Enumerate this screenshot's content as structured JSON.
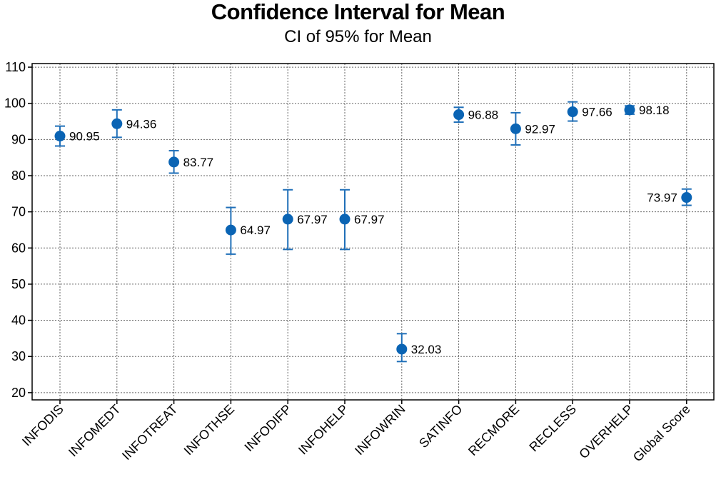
{
  "chart_data": {
    "type": "scatter",
    "title": "Confidence Interval for Mean",
    "subtitle": "CI of 95% for Mean",
    "xlabel": "",
    "ylabel": "",
    "ylim": [
      18,
      111
    ],
    "yticks": [
      20,
      30,
      40,
      50,
      60,
      70,
      80,
      90,
      100,
      110
    ],
    "grid": true,
    "categories": [
      "INFODIS",
      "INFOMEDT",
      "INFOTREAT",
      "INFOTHSE",
      "INFODIFP",
      "INFOHELP",
      "INFOWRIN",
      "SATINFO",
      "RECMORE",
      "RECLESS",
      "OVERHELP",
      "Global Score"
    ],
    "means": [
      90.95,
      94.36,
      83.77,
      64.97,
      67.97,
      67.97,
      32.03,
      96.88,
      92.97,
      97.66,
      98.18,
      73.97
    ],
    "labels": [
      "90.95",
      "94.36",
      "83.77",
      "64.97",
      "67.97",
      "67.97",
      "32.03",
      "96.88",
      "92.97",
      "97.66",
      "98.18",
      "73.97"
    ],
    "ci_lower": [
      88.2,
      90.6,
      80.7,
      58.3,
      59.6,
      59.6,
      28.6,
      94.8,
      88.5,
      95.1,
      97.0,
      71.8
    ],
    "ci_upper": [
      93.7,
      98.2,
      86.9,
      71.2,
      76.1,
      76.1,
      36.3,
      98.9,
      97.4,
      100.4,
      99.3,
      76.3
    ],
    "label_side": [
      "right",
      "right",
      "right",
      "right",
      "right",
      "right",
      "right",
      "right",
      "right",
      "right",
      "right",
      "left"
    ],
    "marker_color": "#0a64b4",
    "errorbar_color": "#1f6fb8"
  }
}
